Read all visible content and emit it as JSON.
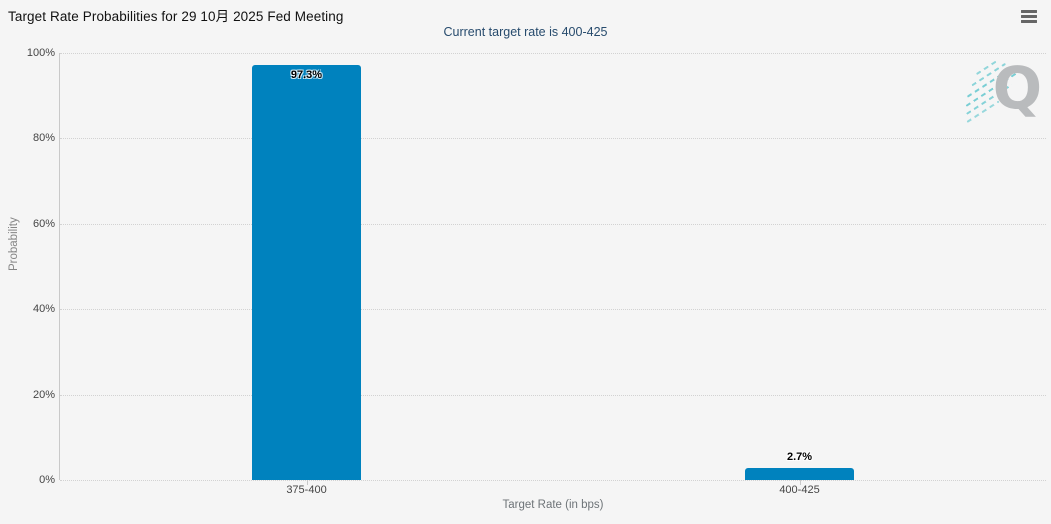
{
  "header": {
    "title": "Target Rate Probabilities for 29 10月 2025 Fed Meeting",
    "subtitle": "Current target rate is 400-425"
  },
  "watermark": {
    "letter": "Q"
  },
  "icons": {
    "context_menu": "hamburger-icon"
  },
  "colors": {
    "bar": "#0082BE",
    "background": "#f5f5f5",
    "subtitle_text": "#274b6d",
    "gridline": "#d2d2d2"
  },
  "chart_data": {
    "type": "bar",
    "title": "Target Rate Probabilities for 29 10月 2025 Fed Meeting",
    "subtitle": "Current target rate is 400-425",
    "categories": [
      "375-400",
      "400-425"
    ],
    "values": [
      97.3,
      2.7
    ],
    "data_labels": [
      "97.3%",
      "2.7%"
    ],
    "xlabel": "Target Rate (in bps)",
    "ylabel": "Probability",
    "ylim": [
      0,
      100
    ],
    "ytick_interval": 20,
    "ytick_labels": [
      "0%",
      "20%",
      "40%",
      "60%",
      "80%",
      "100%"
    ],
    "grid": "horizontal-dotted",
    "legend": "none",
    "bar_color": "#0082BE"
  }
}
